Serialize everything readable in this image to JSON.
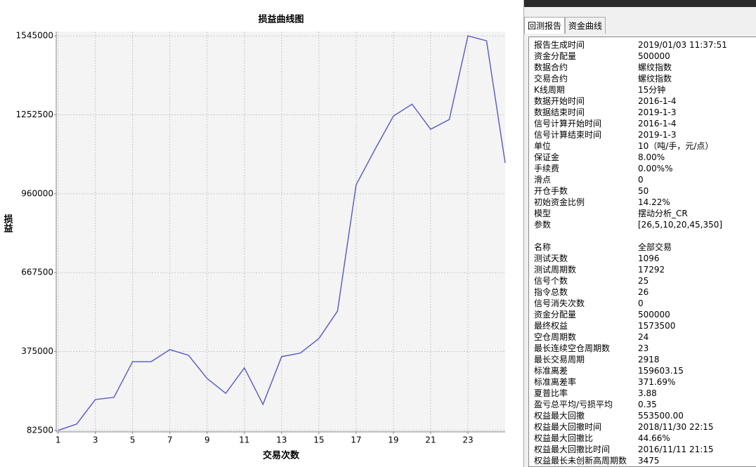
{
  "chart_data": {
    "type": "line",
    "title": "损益曲线图",
    "x_label": "交易次数",
    "y_label": "损益",
    "x": [
      1,
      2,
      3,
      4,
      5,
      6,
      7,
      8,
      9,
      10,
      11,
      12,
      13,
      14,
      15,
      16,
      17,
      18,
      19,
      20,
      21,
      22,
      23,
      24,
      25
    ],
    "series": [
      {
        "color": "#6060c8",
        "values": [
          82500,
          106000,
          197000,
          205000,
          337500,
          337500,
          382000,
          361000,
          275000,
          220000,
          314000,
          179000,
          356000,
          369000,
          423000,
          525000,
          993000,
          1123000,
          1248000,
          1292000,
          1199000,
          1235000,
          1545000,
          1527000,
          1074000
        ]
      }
    ],
    "xlim": [
      0.9,
      25
    ],
    "xticks": [
      1,
      3,
      5,
      7,
      9,
      11,
      13,
      15,
      17,
      19,
      21,
      23
    ],
    "ylim": [
      77000,
      1561000
    ],
    "yticks": [
      82500,
      375000,
      667500,
      960000,
      1252500,
      1545000
    ],
    "grid": true
  },
  "panel": {
    "tabs": [
      "回测报告",
      "资金曲线"
    ],
    "sections": [
      [
        [
          "报告生成时间",
          "2019/01/03 11:37:51"
        ],
        [
          "资金分配量",
          "500000"
        ],
        [
          "数据合约",
          "螺纹指数"
        ],
        [
          "交易合约",
          "螺纹指数"
        ],
        [
          "K线周期",
          "15分钟"
        ],
        [
          "数据开始时间",
          "2016-1-4"
        ],
        [
          "数据结束时间",
          "2019-1-3"
        ],
        [
          "信号计算开始时间",
          "2016-1-4"
        ],
        [
          "信号计算结束时间",
          "2019-1-3"
        ],
        [
          "单位",
          "10（吨/手，元/点）"
        ],
        [
          "保证金",
          "8.00%"
        ],
        [
          "手续费",
          "0.00%%"
        ],
        [
          "滑点",
          "0"
        ],
        [
          "开仓手数",
          "50"
        ],
        [
          "初始资金比例",
          "14.22%"
        ],
        [
          "模型",
          "摆动分析_CR"
        ],
        [
          "参数",
          "[26,5,10,20,45,350]"
        ]
      ],
      [
        [
          "名称",
          "全部交易"
        ],
        [
          "测试天数",
          "1096"
        ],
        [
          "测试周期数",
          "17292"
        ],
        [
          "信号个数",
          "25"
        ],
        [
          "指令总数",
          "26"
        ],
        [
          "信号消失次数",
          "0"
        ],
        [
          "资金分配量",
          "500000"
        ],
        [
          "最终权益",
          "1573500"
        ],
        [
          "空仓周期数",
          "24"
        ],
        [
          "最长连续空仓周期数",
          "23"
        ],
        [
          "最长交易周期",
          "2918"
        ],
        [
          "标准离差",
          "159603.15"
        ],
        [
          "标准离差率",
          "371.69%"
        ],
        [
          "夏普比率",
          "3.88"
        ],
        [
          "盈亏总平均/亏损平均",
          "0.35"
        ],
        [
          "权益最大回撤",
          "553500.00"
        ],
        [
          "权益最大回撤时间",
          "2018/11/30 22:15"
        ],
        [
          "权益最大回撤比",
          "44.66%"
        ],
        [
          "权益最大回撤比时间",
          "2016/11/11 21:15"
        ],
        [
          "权益最长未创新高周期数",
          "3475"
        ]
      ]
    ]
  }
}
